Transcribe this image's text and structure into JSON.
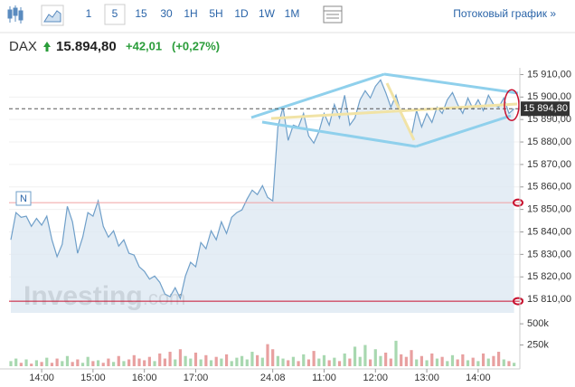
{
  "toolbar": {
    "intervals": [
      "1",
      "5",
      "15",
      "30",
      "1H",
      "5H",
      "1D",
      "1W",
      "1M"
    ],
    "selected_interval": "5",
    "stream_link": "Потоковый график »"
  },
  "header": {
    "symbol": "DAX",
    "price": "15.894,80",
    "change": "+42,01",
    "change_pct": "(+0,27%)"
  },
  "chart_data": {
    "type": "line",
    "watermark": "Investing",
    "watermark_suffix": ".com",
    "marker": "N",
    "categories": [
      null,
      null,
      null,
      null,
      null,
      null,
      "14:00",
      null,
      null,
      null,
      null,
      null,
      null,
      null,
      null,
      null,
      "15:00",
      null,
      null,
      null,
      null,
      null,
      null,
      null,
      null,
      null,
      "16:00",
      null,
      null,
      null,
      null,
      null,
      null,
      null,
      null,
      null,
      "17:00",
      null,
      null,
      null,
      null,
      null,
      null,
      null,
      null,
      null,
      null,
      null,
      null,
      null,
      null,
      "24.08",
      null,
      null,
      null,
      null,
      null,
      null,
      null,
      null,
      null,
      "11:00",
      null,
      null,
      null,
      null,
      null,
      null,
      null,
      null,
      null,
      "12:00",
      null,
      null,
      null,
      null,
      null,
      null,
      null,
      null,
      null,
      "13:00",
      null,
      null,
      null,
      null,
      null,
      null,
      null,
      null,
      null,
      "14:00",
      null,
      null,
      null,
      null,
      null,
      null,
      null
    ],
    "series": [
      {
        "color": "#6f9fc9",
        "values": [
          15836.5,
          15848.6,
          15846.5,
          15847,
          15842.5,
          15846,
          15843,
          15847,
          15836.5,
          15829,
          15834.5,
          15851.4,
          15844.5,
          15830.5,
          15837.7,
          15848.6,
          15847,
          15853.8,
          15842.5,
          15837.7,
          15840.5,
          15833.7,
          15836.5,
          15830.5,
          15829.7,
          15824.5,
          15822.5,
          15819,
          15820.4,
          15817.6,
          15812.4,
          15811.2,
          15815.2,
          15810.4,
          15820.4,
          15826.5,
          15824.5,
          15835.3,
          15832.5,
          15840.5,
          15836.5,
          15844.5,
          15839.3,
          15846.5,
          15848.6,
          15849.8,
          15854.6,
          15858.6,
          15856.6,
          15860.6,
          15855.4,
          15853.8,
          15886.7,
          15895.5,
          15880.7,
          15887.5,
          15886.7,
          15892.7,
          15882.7,
          15879.5,
          15884.7,
          15892.7,
          15887.5,
          15896.7,
          15890.7,
          15900.8,
          15887.5,
          15890.7,
          15898.8,
          15902.8,
          15899.6,
          15904.8,
          15907.6,
          15902,
          15895.5,
          15900.8,
          15892.7,
          15888.7,
          15882.7,
          15894,
          15886.7,
          15892.7,
          15888.7,
          15895.5,
          15892.7,
          15898.8,
          15902,
          15896.7,
          15892.7,
          15899.6,
          15894.7,
          15898.8,
          15894,
          15900.8,
          15896.7,
          15895.5,
          15899.6,
          15892.7,
          15894.8
        ]
      }
    ],
    "ylim": [
      15804,
      15913
    ],
    "yticks": [
      {
        "value": 15810,
        "label": "15 810,00"
      },
      {
        "value": 15820,
        "label": "15 820,00"
      },
      {
        "value": 15830,
        "label": "15 830,00"
      },
      {
        "value": 15840,
        "label": "15 840,00"
      },
      {
        "value": 15850,
        "label": "15 850,00"
      },
      {
        "value": 15860,
        "label": "15 860,00"
      },
      {
        "value": 15870,
        "label": "15 870,00"
      },
      {
        "value": 15880,
        "label": "15 880,00"
      },
      {
        "value": 15890,
        "label": "15 890,00"
      },
      {
        "value": 15900,
        "label": "15 900,00"
      },
      {
        "value": 15910,
        "label": "15 910,00"
      }
    ],
    "last_price": {
      "value": 15894.8,
      "label": "15 894,80"
    },
    "levels": [
      {
        "value": 15853,
        "color": "#f0a0a0"
      },
      {
        "value": 15809.2,
        "color": "#c8102e"
      }
    ],
    "volume": {
      "up_color": "#a8d8b0",
      "down_color": "#e8a0a0",
      "values": [
        60000,
        90000,
        40000,
        80000,
        30000,
        70000,
        50000,
        100000,
        40000,
        90000,
        60000,
        120000,
        50000,
        80000,
        40000,
        110000,
        60000,
        70000,
        40000,
        90000,
        50000,
        120000,
        60000,
        80000,
        130000,
        90000,
        70000,
        110000,
        60000,
        150000,
        90000,
        170000,
        80000,
        200000,
        120000,
        90000,
        160000,
        80000,
        130000,
        70000,
        110000,
        90000,
        140000,
        60000,
        100000,
        120000,
        80000,
        170000,
        130000,
        100000,
        260000,
        200000,
        120000,
        90000,
        70000,
        110000,
        60000,
        140000,
        80000,
        180000,
        90000,
        130000,
        70000,
        100000,
        60000,
        150000,
        90000,
        230000,
        110000,
        250000,
        80000,
        200000,
        120000,
        160000,
        90000,
        300000,
        140000,
        110000,
        190000,
        80000,
        120000,
        70000,
        150000,
        90000,
        110000,
        60000,
        130000,
        80000,
        140000,
        70000,
        100000,
        60000,
        150000,
        90000,
        120000,
        170000,
        80000,
        60000,
        40000
      ],
      "ylim": [
        0,
        565000
      ],
      "yticks": [
        {
          "value": 250000,
          "label": "250k"
        },
        {
          "value": 500000,
          "label": "500k"
        }
      ]
    }
  }
}
